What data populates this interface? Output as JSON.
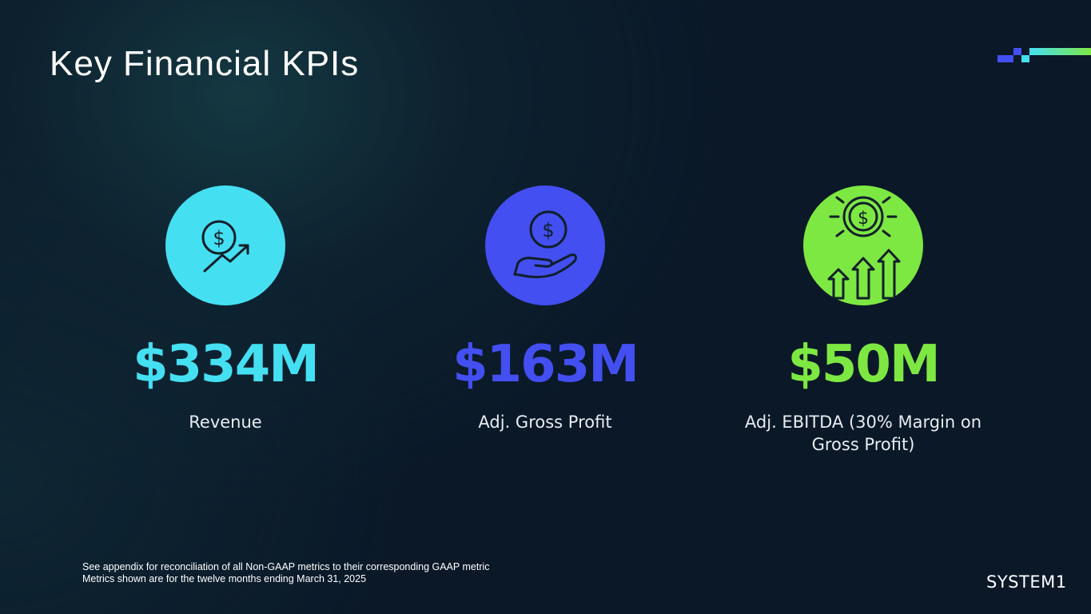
{
  "slide": {
    "title": "Key Financial KPIs"
  },
  "kpis": [
    {
      "value": "$334M",
      "label": "Revenue",
      "color": "#45dff2",
      "icon": "dollar-coin-trend-up-icon"
    },
    {
      "value": "$163M",
      "label": "Adj. Gross Profit",
      "color": "#434ff0",
      "icon": "hand-holding-dollar-icon"
    },
    {
      "value": "$50M",
      "label": "Adj. EBITDA (30% Margin on Gross Profit)",
      "color": "#7ee843",
      "icon": "dollar-coin-growth-arrows-icon"
    }
  ],
  "footnotes": {
    "line1": "See appendix for reconciliation of all Non-GAAP metrics to their corresponding GAAP metric",
    "line2": "Metrics shown are for the twelve months ending March 31, 2025"
  },
  "brand": {
    "logo_text": "SYSTEM1"
  },
  "colors": {
    "background": "#0a1828",
    "icon_stroke": "#0f1f2a"
  }
}
